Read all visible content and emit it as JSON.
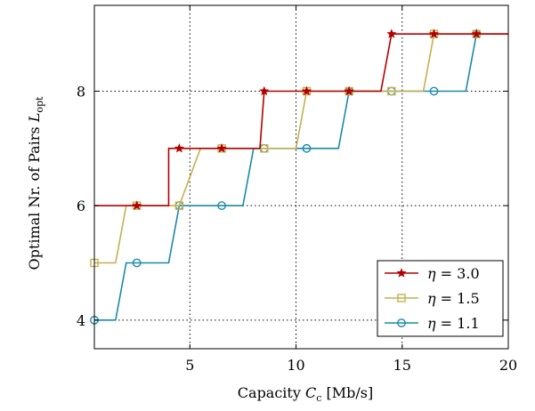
{
  "chart_data": {
    "type": "line",
    "title": "",
    "xlabel": "Capacity C_c [Mb/s]",
    "ylabel": "Optimal Nr. of Pairs L_opt",
    "xlabel_parts": {
      "prefix": "Capacity ",
      "var": "C",
      "sub": "c",
      "suffix": " [Mb/s]"
    },
    "ylabel_parts": {
      "prefix": "Optimal Nr. of Pairs ",
      "var": "L",
      "sub": "opt"
    },
    "xlim": [
      0.5,
      20
    ],
    "ylim": [
      3.5,
      9.5
    ],
    "xticks": [
      5,
      10,
      15,
      20
    ],
    "yticks": [
      4,
      6,
      8
    ],
    "grid": true,
    "legend_position": "bottom-right",
    "series": [
      {
        "name": "η = 3.0",
        "color": "#b30000",
        "marker": "star",
        "points": [
          [
            0.5,
            6
          ],
          [
            2.5,
            6
          ],
          [
            4,
            6
          ],
          [
            4,
            7
          ],
          [
            4.5,
            7
          ],
          [
            6.5,
            7
          ],
          [
            8.3,
            7
          ],
          [
            8.5,
            8
          ],
          [
            10.5,
            8
          ],
          [
            12.5,
            8
          ],
          [
            14,
            8
          ],
          [
            14.5,
            9
          ],
          [
            16.5,
            9
          ],
          [
            18.5,
            9
          ],
          [
            20,
            9
          ]
        ],
        "markers": [
          [
            2.5,
            6
          ],
          [
            4.5,
            7
          ],
          [
            6.5,
            7
          ],
          [
            8.5,
            8
          ],
          [
            10.5,
            8
          ],
          [
            12.5,
            8
          ],
          [
            14.5,
            9
          ],
          [
            16.5,
            9
          ],
          [
            18.5,
            9
          ]
        ]
      },
      {
        "name": "η = 1.5",
        "color": "#c4b050",
        "marker": "square",
        "points": [
          [
            0.5,
            5
          ],
          [
            1.5,
            5
          ],
          [
            2,
            6
          ],
          [
            2.5,
            6
          ],
          [
            4.5,
            6
          ],
          [
            5.5,
            7
          ],
          [
            6.5,
            7
          ],
          [
            8.5,
            7
          ],
          [
            10,
            7
          ],
          [
            10.5,
            8
          ],
          [
            12.5,
            8
          ],
          [
            14.5,
            8
          ],
          [
            16,
            8
          ],
          [
            16.5,
            9
          ],
          [
            18.5,
            9
          ],
          [
            20,
            9
          ]
        ],
        "markers": [
          [
            0.5,
            5
          ],
          [
            2.5,
            6
          ],
          [
            4.5,
            6
          ],
          [
            6.5,
            7
          ],
          [
            8.5,
            7
          ],
          [
            10.5,
            8
          ],
          [
            12.5,
            8
          ],
          [
            14.5,
            8
          ],
          [
            16.5,
            9
          ],
          [
            18.5,
            9
          ]
        ]
      },
      {
        "name": "η = 1.1",
        "color": "#1a8aa8",
        "marker": "circle",
        "points": [
          [
            0.5,
            4
          ],
          [
            1.5,
            4
          ],
          [
            2,
            5
          ],
          [
            2.5,
            5
          ],
          [
            4,
            5
          ],
          [
            4.5,
            6
          ],
          [
            6.5,
            6
          ],
          [
            7.5,
            6
          ],
          [
            8,
            7
          ],
          [
            8.5,
            7
          ],
          [
            10.5,
            7
          ],
          [
            12,
            7
          ],
          [
            12.5,
            8
          ],
          [
            14.5,
            8
          ],
          [
            16.5,
            8
          ],
          [
            18,
            8
          ],
          [
            18.5,
            9
          ],
          [
            20,
            9
          ]
        ],
        "markers": [
          [
            0.5,
            4
          ],
          [
            2.5,
            5
          ],
          [
            4.5,
            6
          ],
          [
            6.5,
            6
          ],
          [
            8.5,
            7
          ],
          [
            10.5,
            7
          ],
          [
            12.5,
            8
          ],
          [
            14.5,
            8
          ],
          [
            16.5,
            8
          ],
          [
            18.5,
            9
          ]
        ]
      }
    ],
    "legend_parts": [
      {
        "var": "η",
        "value": " = 3.0"
      },
      {
        "var": "η",
        "value": " = 1.5"
      },
      {
        "var": "η",
        "value": " = 1.1"
      }
    ]
  }
}
